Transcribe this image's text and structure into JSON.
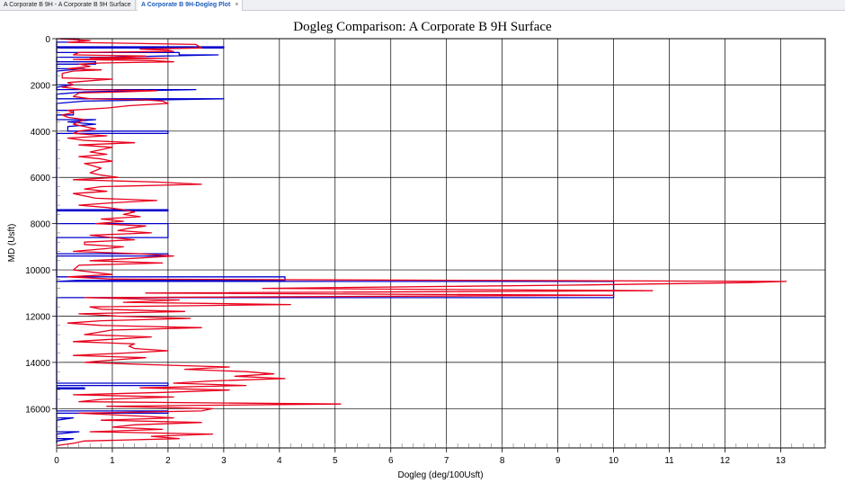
{
  "tabs": [
    {
      "label": "A Corporate B 9H - A Corporate B 9H Surface",
      "active": false
    },
    {
      "label": "A Corporate B 9H-Dogleg Plot",
      "active": true
    }
  ],
  "close_glyph": "×",
  "chart_data": {
    "type": "line",
    "title": "Dogleg Comparison: A Corporate B 9H Surface",
    "xlabel": "Dogleg (deg/100Usft)",
    "ylabel": "MD (Usft)",
    "xlim": [
      0,
      13.8
    ],
    "ylim": [
      17700,
      0
    ],
    "y_inverted": true,
    "grid": true,
    "x_ticks": [
      0,
      1,
      2,
      3,
      4,
      5,
      6,
      7,
      8,
      9,
      10,
      11,
      12,
      13
    ],
    "y_ticks": [
      0,
      2000,
      4000,
      6000,
      8000,
      10000,
      12000,
      14000,
      16000
    ],
    "colors": {
      "blue": "#0000cc",
      "red": "#e8001c",
      "grid": "#000000"
    },
    "series": [
      {
        "color": "#0000cc",
        "points": [
          [
            0,
            0
          ],
          [
            0.4,
            0
          ],
          [
            0.4,
            150
          ],
          [
            0,
            150
          ],
          [
            0,
            350
          ],
          [
            3,
            350
          ],
          [
            3,
            400
          ],
          [
            0,
            400
          ],
          [
            0,
            600
          ],
          [
            2.2,
            600
          ],
          [
            2.2,
            700
          ],
          [
            2.9,
            700
          ],
          [
            0.9,
            800
          ],
          [
            0,
            800
          ],
          [
            0,
            1000
          ],
          [
            0.7,
            1000
          ],
          [
            0.7,
            1100
          ],
          [
            0,
            1100
          ],
          [
            0,
            1300
          ],
          [
            0.5,
            1300
          ],
          [
            0,
            1400
          ],
          [
            0,
            2000
          ],
          [
            0.3,
            2000
          ],
          [
            0,
            2100
          ],
          [
            0,
            2200
          ],
          [
            2.5,
            2200
          ],
          [
            0.5,
            2300
          ],
          [
            0,
            2400
          ],
          [
            0,
            2600
          ],
          [
            3,
            2600
          ],
          [
            0.5,
            2700
          ],
          [
            0,
            2800
          ],
          [
            0,
            3100
          ],
          [
            0.3,
            3100
          ],
          [
            0.3,
            3300
          ],
          [
            0,
            3300
          ],
          [
            0,
            3500
          ],
          [
            0.7,
            3500
          ],
          [
            0.2,
            3600
          ],
          [
            0.7,
            3700
          ],
          [
            0.2,
            3800
          ],
          [
            0.2,
            4000
          ],
          [
            2,
            4000
          ],
          [
            2,
            4100
          ],
          [
            0,
            4100
          ],
          [
            0,
            7400
          ],
          [
            2,
            7400
          ],
          [
            2,
            7450
          ],
          [
            0,
            7450
          ],
          [
            0,
            8000
          ],
          [
            2,
            8000
          ],
          [
            2,
            8600
          ],
          [
            0,
            8600
          ],
          [
            0,
            8700
          ],
          [
            0,
            9300
          ],
          [
            2,
            9300
          ],
          [
            2,
            9400
          ],
          [
            0,
            9400
          ],
          [
            0,
            10300
          ],
          [
            4.1,
            10300
          ],
          [
            4.1,
            10450
          ],
          [
            0.4,
            10450
          ],
          [
            0,
            10500
          ],
          [
            10,
            10500
          ],
          [
            10,
            11200
          ],
          [
            0,
            11200
          ],
          [
            0,
            11300
          ],
          [
            0,
            14900
          ],
          [
            2,
            14900
          ],
          [
            2,
            15000
          ],
          [
            0,
            15000
          ],
          [
            0,
            15100
          ],
          [
            0.5,
            15100
          ],
          [
            0.5,
            15150
          ],
          [
            0,
            15150
          ],
          [
            0,
            16100
          ],
          [
            2,
            16100
          ],
          [
            2,
            16200
          ],
          [
            0,
            16200
          ],
          [
            0,
            16400
          ],
          [
            0.3,
            16400
          ],
          [
            0,
            16500
          ],
          [
            0,
            17000
          ],
          [
            0.4,
            17000
          ],
          [
            0,
            17100
          ],
          [
            0,
            17300
          ],
          [
            0.3,
            17300
          ],
          [
            0,
            17400
          ],
          [
            0,
            17500
          ]
        ]
      },
      {
        "color": "#e8001c",
        "points": [
          [
            0,
            0
          ],
          [
            0.6,
            80
          ],
          [
            0.2,
            160
          ],
          [
            1.3,
            200
          ],
          [
            2.5,
            250
          ],
          [
            2.6,
            400
          ],
          [
            1.5,
            450
          ],
          [
            2,
            500
          ],
          [
            2.1,
            550
          ],
          [
            0.4,
            600
          ],
          [
            0.3,
            700
          ],
          [
            1.6,
            750
          ],
          [
            1.2,
            800
          ],
          [
            0.6,
            830
          ],
          [
            2,
            850
          ],
          [
            0.3,
            900
          ],
          [
            1.7,
            950
          ],
          [
            2.1,
            1000
          ],
          [
            0.8,
            1050
          ],
          [
            0.4,
            1100
          ],
          [
            0.6,
            1200
          ],
          [
            0.2,
            1300
          ],
          [
            0.8,
            1350
          ],
          [
            0.3,
            1400
          ],
          [
            0.1,
            1500
          ],
          [
            0.1,
            1700
          ],
          [
            1,
            1750
          ],
          [
            0.7,
            1800
          ],
          [
            0.2,
            1900
          ],
          [
            0.3,
            2000
          ],
          [
            0.1,
            2100
          ],
          [
            0.5,
            2200
          ],
          [
            1.8,
            2250
          ],
          [
            1.2,
            2300
          ],
          [
            0.4,
            2350
          ],
          [
            0.3,
            2500
          ],
          [
            0.6,
            2600
          ],
          [
            1.6,
            2650
          ],
          [
            1.9,
            2700
          ],
          [
            2,
            2800
          ],
          [
            1.3,
            2900
          ],
          [
            0.9,
            3000
          ],
          [
            0.2,
            3100
          ],
          [
            0.3,
            3200
          ],
          [
            0.1,
            3300
          ],
          [
            0.2,
            3400
          ],
          [
            0.5,
            3500
          ],
          [
            0.3,
            3700
          ],
          [
            0.7,
            3900
          ],
          [
            0.4,
            4000
          ],
          [
            0.3,
            4100
          ],
          [
            0.9,
            4200
          ],
          [
            0.2,
            4300
          ],
          [
            0.5,
            4400
          ],
          [
            1.4,
            4500
          ],
          [
            0.4,
            4600
          ],
          [
            1,
            4700
          ],
          [
            0.8,
            4800
          ],
          [
            0.6,
            4900
          ],
          [
            0.9,
            5000
          ],
          [
            0.4,
            5100
          ],
          [
            0.8,
            5200
          ],
          [
            1,
            5300
          ],
          [
            0.5,
            5400
          ],
          [
            0.8,
            5600
          ],
          [
            0.6,
            5800
          ],
          [
            0.8,
            5900
          ],
          [
            1.1,
            6000
          ],
          [
            0.3,
            6100
          ],
          [
            1.8,
            6200
          ],
          [
            2.6,
            6300
          ],
          [
            0.8,
            6400
          ],
          [
            0.5,
            6500
          ],
          [
            0.9,
            6600
          ],
          [
            0.3,
            6700
          ],
          [
            0.7,
            6900
          ],
          [
            1.8,
            7000
          ],
          [
            1,
            7100
          ],
          [
            0.4,
            7200
          ],
          [
            0.9,
            7300
          ],
          [
            1.2,
            7400
          ],
          [
            1.4,
            7500
          ],
          [
            1.2,
            7600
          ],
          [
            1.5,
            7700
          ],
          [
            0.8,
            7800
          ],
          [
            1.2,
            7900
          ],
          [
            0.7,
            8000
          ],
          [
            1.6,
            8100
          ],
          [
            1.3,
            8200
          ],
          [
            1.1,
            8300
          ],
          [
            1.7,
            8400
          ],
          [
            0.6,
            8500
          ],
          [
            1,
            8600
          ],
          [
            1.4,
            8700
          ],
          [
            0.5,
            8800
          ],
          [
            0.5,
            8900
          ],
          [
            1.2,
            9000
          ],
          [
            0.8,
            9100
          ],
          [
            0.3,
            9200
          ],
          [
            1.5,
            9300
          ],
          [
            2.1,
            9400
          ],
          [
            1.4,
            9500
          ],
          [
            0.6,
            9600
          ],
          [
            1.9,
            9700
          ],
          [
            0.4,
            9800
          ],
          [
            0.3,
            10000
          ],
          [
            1,
            10200
          ],
          [
            0.2,
            10300
          ],
          [
            1,
            10400
          ],
          [
            13.1,
            10500
          ],
          [
            12.4,
            10550
          ],
          [
            9.5,
            10650
          ],
          [
            3.7,
            10800
          ],
          [
            10.7,
            10900
          ],
          [
            1.6,
            11000
          ],
          [
            10,
            11100
          ],
          [
            0.5,
            11200
          ],
          [
            2.2,
            11300
          ],
          [
            1.2,
            11400
          ],
          [
            4.2,
            11500
          ],
          [
            0.6,
            11600
          ],
          [
            0.8,
            11700
          ],
          [
            2.3,
            11800
          ],
          [
            0.4,
            11900
          ],
          [
            1.1,
            12000
          ],
          [
            2.4,
            12100
          ],
          [
            0.8,
            12200
          ],
          [
            0.2,
            12300
          ],
          [
            0.8,
            12400
          ],
          [
            2.6,
            12500
          ],
          [
            1,
            12600
          ],
          [
            0.5,
            12800
          ],
          [
            1.7,
            12900
          ],
          [
            1,
            13000
          ],
          [
            0.3,
            13100
          ],
          [
            1.4,
            13200
          ],
          [
            1.3,
            13300
          ],
          [
            1.4,
            13400
          ],
          [
            2,
            13500
          ],
          [
            1.2,
            13600
          ],
          [
            0.3,
            13700
          ],
          [
            1.6,
            13800
          ],
          [
            1,
            13900
          ],
          [
            0.5,
            14000
          ],
          [
            1.7,
            14100
          ],
          [
            3.1,
            14200
          ],
          [
            2.3,
            14300
          ],
          [
            3.4,
            14400
          ],
          [
            3.9,
            14500
          ],
          [
            3.2,
            14600
          ],
          [
            4.1,
            14700
          ],
          [
            2.8,
            14800
          ],
          [
            2.1,
            14900
          ],
          [
            3.4,
            15000
          ],
          [
            1.5,
            15100
          ],
          [
            3.1,
            15200
          ],
          [
            1.9,
            15300
          ],
          [
            0.3,
            15400
          ],
          [
            2.1,
            15500
          ],
          [
            0.8,
            15600
          ],
          [
            0.4,
            15700
          ],
          [
            5.1,
            15800
          ],
          [
            0.9,
            15900
          ],
          [
            2.8,
            16000
          ],
          [
            2.6,
            16100
          ],
          [
            0.4,
            16200
          ],
          [
            1.3,
            16300
          ],
          [
            2.1,
            16400
          ],
          [
            0.8,
            16500
          ],
          [
            2.6,
            16600
          ],
          [
            1.4,
            16700
          ],
          [
            1,
            16800
          ],
          [
            1.9,
            16900
          ],
          [
            0.6,
            17000
          ],
          [
            2.8,
            17100
          ],
          [
            1.7,
            17200
          ],
          [
            2.2,
            17300
          ],
          [
            0.5,
            17400
          ],
          [
            0.3,
            17500
          ],
          [
            0,
            17600
          ]
        ]
      }
    ]
  }
}
